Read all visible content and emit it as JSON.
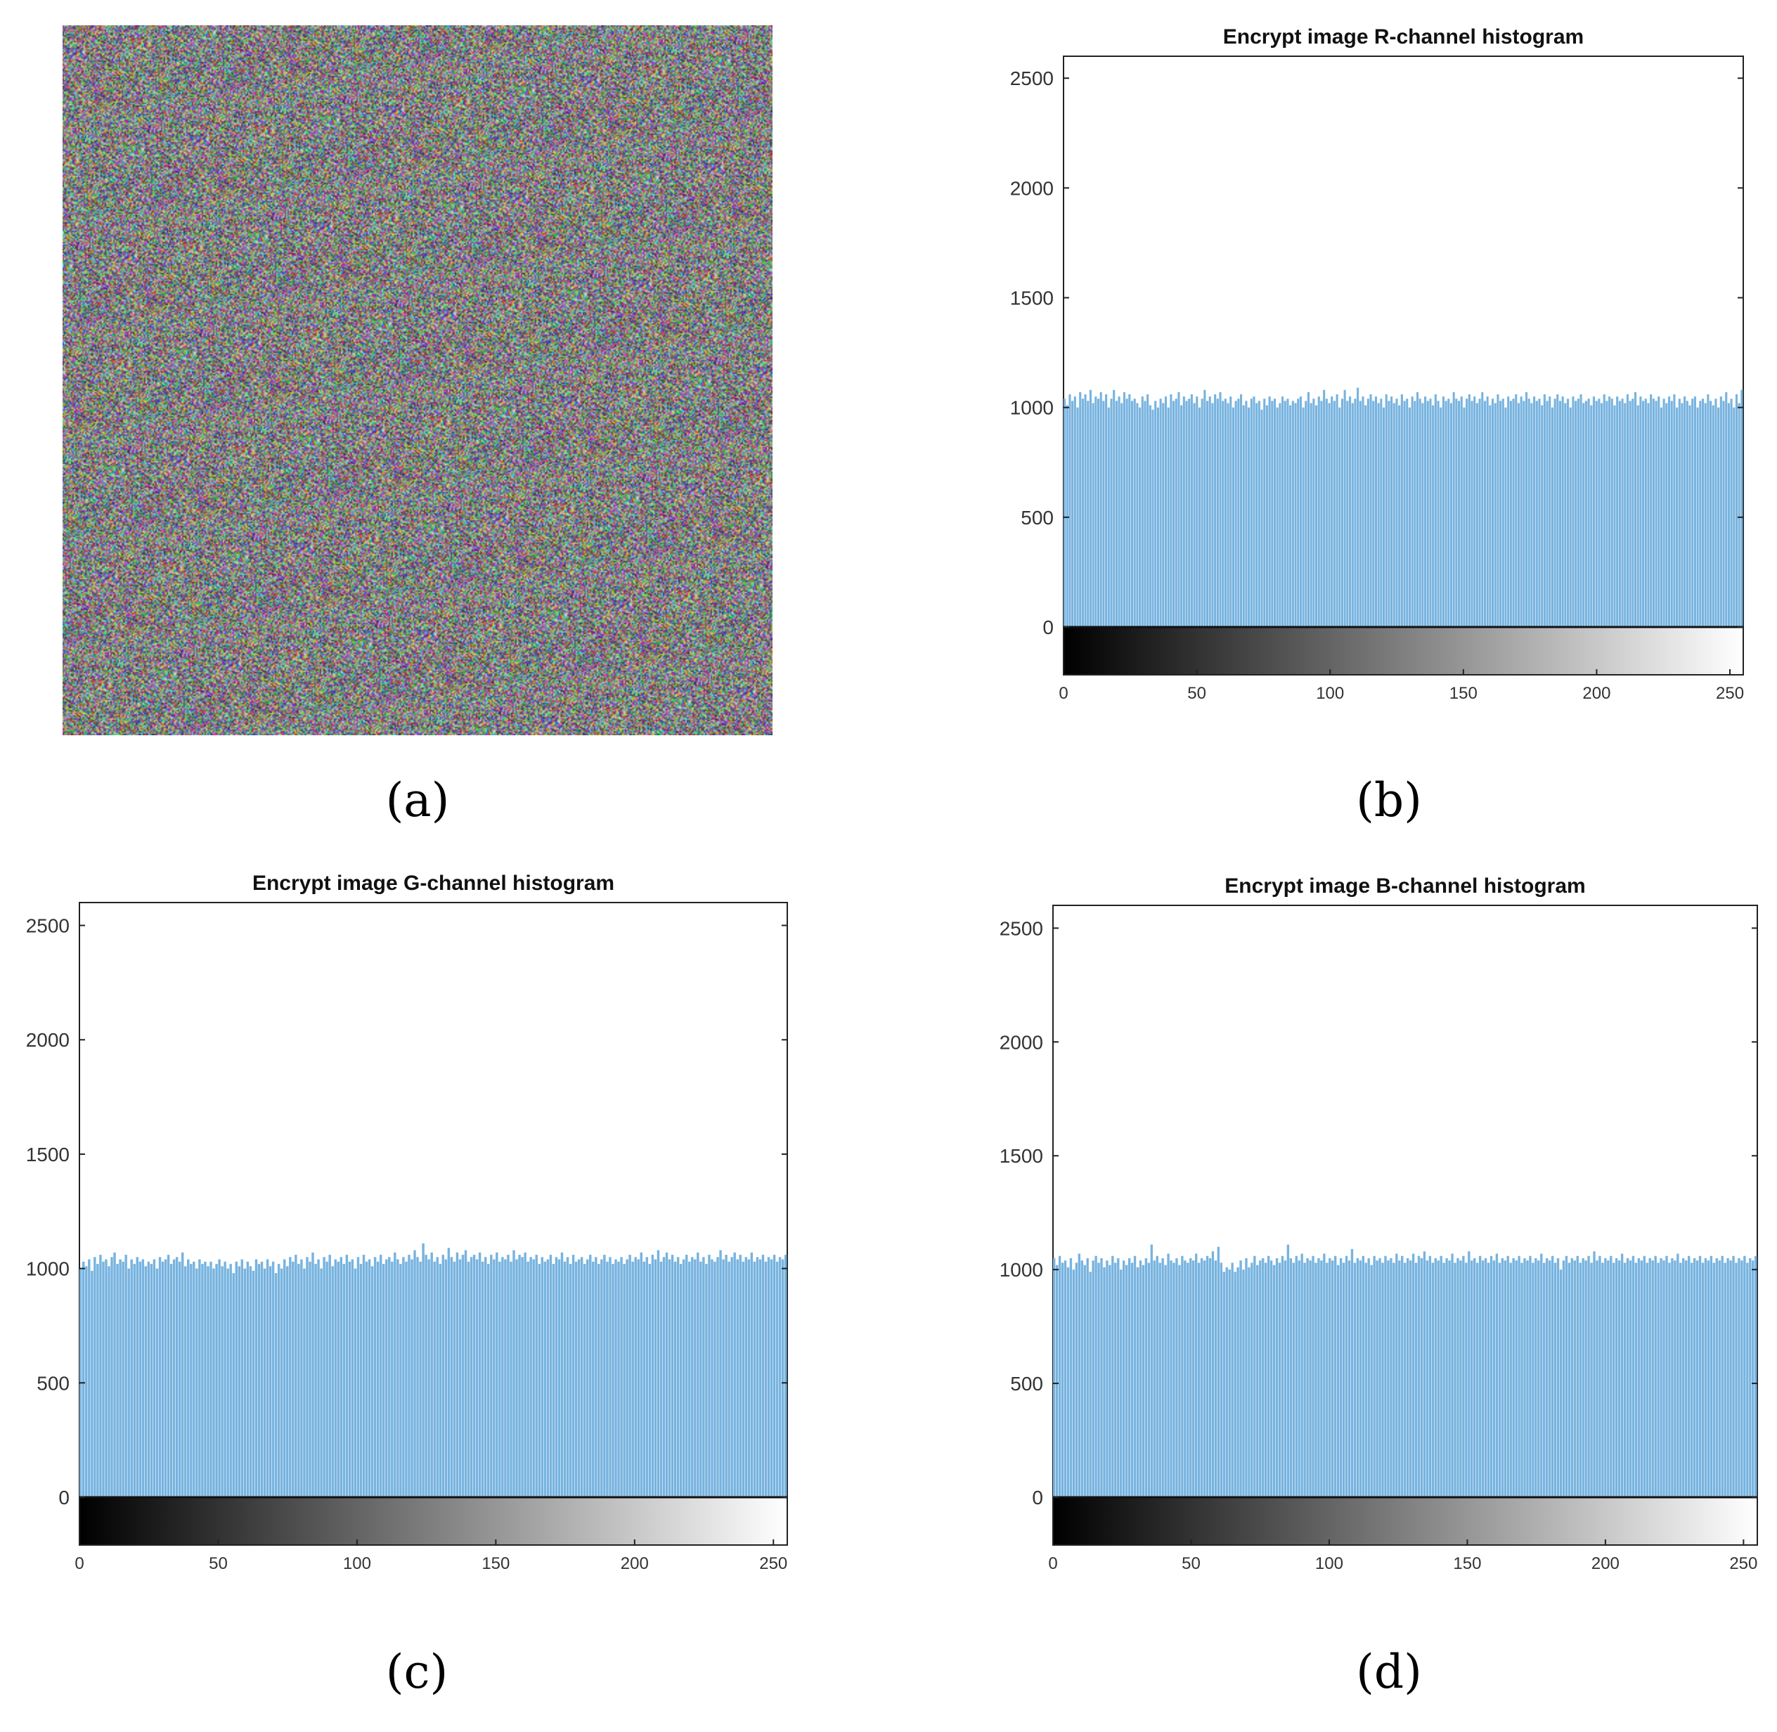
{
  "figure": {
    "panels": [
      {
        "label": "(a)"
      },
      {
        "label": "(b)"
      },
      {
        "label": "(c)"
      },
      {
        "label": "(d)"
      }
    ]
  },
  "colors": {
    "bar": "#77b3df",
    "axis": "#222222",
    "tick_text": "#333333"
  },
  "chart_data": [
    {
      "type": "bar",
      "panel": "(b)",
      "title": "Encrypt image R-channel histogram",
      "xlabel": "",
      "ylabel": "",
      "xlim": [
        0,
        255
      ],
      "ylim": [
        0,
        2600
      ],
      "xticks": [
        0,
        50,
        100,
        150,
        200,
        250
      ],
      "yticks": [
        0,
        500,
        1000,
        1500,
        2000,
        2500
      ],
      "grayscale_colorbar": true,
      "values": [
        1040,
        1010,
        1060,
        1030,
        1050,
        1000,
        1070,
        1040,
        1060,
        1030,
        1080,
        1020,
        1050,
        1040,
        1070,
        1030,
        1060,
        1000,
        1040,
        1080,
        1030,
        1050,
        1020,
        1070,
        1040,
        1060,
        1030,
        1040,
        1020,
        1000,
        1050,
        1030,
        1060,
        1010,
        990,
        1030,
        1000,
        1040,
        1020,
        1050,
        1000,
        1060,
        1030,
        1040,
        1070,
        1010,
        1050,
        1030,
        1040,
        1060,
        1020,
        1050,
        1000,
        1040,
        1080,
        1030,
        1050,
        1020,
        1060,
        1040,
        1070,
        1030,
        1040,
        1020,
        1050,
        1000,
        1030,
        1040,
        1060,
        1010,
        1030,
        1000,
        1040,
        1050,
        1020,
        1030,
        990,
        1040,
        1010,
        1050,
        1030,
        1040,
        1000,
        1020,
        1050,
        1030,
        1040,
        1010,
        1030,
        1020,
        1040,
        1050,
        1000,
        1030,
        1070,
        1020,
        1040,
        1010,
        1050,
        1030,
        1080,
        1040,
        1020,
        1050,
        1030,
        1060,
        1000,
        1040,
        1080,
        1030,
        1050,
        1020,
        1040,
        1090,
        1030,
        1050,
        1010,
        1040,
        1060,
        1030,
        1050,
        1020,
        1040,
        1000,
        1060,
        1030,
        1050,
        1020,
        1040,
        1010,
        1060,
        1030,
        1040,
        1000,
        1050,
        1030,
        1070,
        1040,
        1020,
        1050,
        1030,
        1040,
        1010,
        1060,
        1030,
        1000,
        1050,
        1030,
        1040,
        1020,
        1070,
        1040,
        1030,
        1050,
        1000,
        1040,
        1060,
        1030,
        1050,
        1020,
        1040,
        1070,
        1030,
        1050,
        1010,
        1040,
        1020,
        1060,
        1030,
        1040,
        1000,
        1050,
        1030,
        1040,
        1060,
        1020,
        1050,
        1030,
        1070,
        1040,
        1020,
        1050,
        1030,
        1040,
        1010,
        1060,
        1030,
        1050,
        1000,
        1040,
        1060,
        1030,
        1050,
        1020,
        1040,
        1000,
        1050,
        1030,
        1040,
        1060,
        1020,
        1030,
        1040,
        1010,
        1050,
        1030,
        1040,
        1020,
        1060,
        1030,
        1050,
        1040,
        1010,
        1050,
        1030,
        1040,
        1020,
        1060,
        1030,
        1040,
        1070,
        1010,
        1050,
        1030,
        1040,
        1020,
        1060,
        1040,
        1030,
        1050,
        1000,
        1040,
        1020,
        1050,
        1030,
        1060,
        1000,
        1040,
        1020,
        1050,
        1030,
        1010,
        1040,
        1050,
        1000,
        1030,
        1040,
        1020,
        1060,
        1030,
        1010,
        1040,
        1000,
        1050,
        1030,
        1070,
        1020,
        1040,
        1000,
        1060,
        1020,
        1080
      ]
    },
    {
      "type": "bar",
      "panel": "(c)",
      "title": "Encrypt image G-channel histogram",
      "xlabel": "",
      "ylabel": "",
      "xlim": [
        0,
        255
      ],
      "ylim": [
        0,
        2600
      ],
      "xticks": [
        0,
        50,
        100,
        150,
        200,
        250
      ],
      "yticks": [
        0,
        500,
        1000,
        1500,
        2000,
        2500
      ],
      "grayscale_colorbar": true,
      "values": [
        1000,
        1030,
        1010,
        1040,
        990,
        1050,
        1020,
        1060,
        1030,
        1040,
        1010,
        1050,
        1070,
        1020,
        1040,
        1030,
        1060,
        1000,
        1040,
        1020,
        1050,
        1030,
        1040,
        1010,
        1030,
        1020,
        1040,
        1000,
        1050,
        1030,
        1040,
        1060,
        1020,
        1040,
        1050,
        1030,
        1070,
        1010,
        1040,
        1020,
        1030,
        1000,
        1040,
        1020,
        1030,
        1010,
        1030,
        1000,
        1020,
        1040,
        1010,
        1030,
        1000,
        1020,
        980,
        1030,
        1010,
        1040,
        1000,
        1030,
        1010,
        990,
        1040,
        1020,
        1030,
        1000,
        1040,
        1010,
        1030,
        980,
        1020,
        1000,
        1040,
        1010,
        1050,
        1030,
        1060,
        1020,
        1040,
        1000,
        1050,
        1030,
        1070,
        1020,
        1040,
        1000,
        1050,
        1030,
        1060,
        1010,
        1040,
        1030,
        1050,
        1020,
        1060,
        1030,
        1040,
        1000,
        1050,
        1020,
        1060,
        1030,
        1040,
        1010,
        1050,
        1030,
        1060,
        1020,
        1040,
        1050,
        1030,
        1070,
        1040,
        1020,
        1050,
        1030,
        1060,
        1040,
        1080,
        1050,
        1030,
        1110,
        1060,
        1040,
        1070,
        1030,
        1050,
        1020,
        1060,
        1040,
        1090,
        1050,
        1030,
        1070,
        1040,
        1060,
        1080,
        1030,
        1050,
        1060,
        1040,
        1070,
        1030,
        1050,
        1020,
        1060,
        1040,
        1070,
        1030,
        1050,
        1040,
        1060,
        1030,
        1080,
        1040,
        1060,
        1050,
        1070,
        1030,
        1050,
        1040,
        1060,
        1020,
        1050,
        1030,
        1040,
        1060,
        1020,
        1050,
        1040,
        1070,
        1030,
        1050,
        1020,
        1060,
        1030,
        1040,
        1050,
        1020,
        1040,
        1060,
        1030,
        1050,
        1020,
        1040,
        1060,
        1030,
        1050,
        1020,
        1040,
        1030,
        1050,
        1020,
        1040,
        1060,
        1030,
        1050,
        1040,
        1070,
        1030,
        1050,
        1020,
        1060,
        1040,
        1080,
        1030,
        1050,
        1070,
        1040,
        1060,
        1030,
        1050,
        1020,
        1040,
        1060,
        1030,
        1050,
        1040,
        1070,
        1030,
        1050,
        1020,
        1060,
        1040,
        1030,
        1050,
        1080,
        1040,
        1060,
        1030,
        1050,
        1070,
        1040,
        1060,
        1030,
        1050,
        1040,
        1070,
        1030,
        1050,
        1040,
        1060,
        1030,
        1050,
        1040,
        1060,
        1030,
        1050,
        1040,
        1060
      ]
    },
    {
      "type": "bar",
      "panel": "(d)",
      "title": "Encrypt image B-channel histogram",
      "xlabel": "",
      "ylabel": "",
      "xlim": [
        0,
        255
      ],
      "ylim": [
        0,
        2600
      ],
      "xticks": [
        0,
        50,
        100,
        150,
        200,
        250
      ],
      "yticks": [
        0,
        500,
        1000,
        1500,
        2000,
        2500
      ],
      "grayscale_colorbar": true,
      "values": [
        1050,
        1020,
        1060,
        1030,
        1040,
        1010,
        1050,
        1000,
        1030,
        1070,
        1040,
        1020,
        1050,
        990,
        1040,
        1060,
        1030,
        1050,
        1010,
        1040,
        1020,
        1060,
        1030,
        1050,
        1000,
        1040,
        1020,
        1050,
        1030,
        1060,
        1010,
        1040,
        1020,
        1050,
        1030,
        1110,
        1040,
        1060,
        1030,
        1050,
        1020,
        1070,
        1040,
        1030,
        1050,
        1020,
        1060,
        1040,
        1030,
        1050,
        1040,
        1070,
        1030,
        1050,
        1040,
        1060,
        1050,
        1080,
        1040,
        1100,
        1030,
        990,
        1010,
        1000,
        1030,
        990,
        1010,
        1040,
        1000,
        1050,
        1010,
        1030,
        1060,
        1020,
        1040,
        1050,
        1030,
        1060,
        1040,
        1020,
        1050,
        1030,
        1060,
        1040,
        1110,
        1050,
        1030,
        1060,
        1040,
        1070,
        1030,
        1050,
        1040,
        1060,
        1030,
        1050,
        1040,
        1070,
        1030,
        1050,
        1040,
        1060,
        1020,
        1050,
        1030,
        1060,
        1040,
        1090,
        1030,
        1050,
        1040,
        1060,
        1030,
        1050,
        1020,
        1060,
        1040,
        1050,
        1030,
        1060,
        1040,
        1050,
        1030,
        1070,
        1040,
        1060,
        1030,
        1050,
        1040,
        1070,
        1030,
        1060,
        1050,
        1080,
        1040,
        1060,
        1030,
        1050,
        1040,
        1060,
        1030,
        1050,
        1040,
        1070,
        1030,
        1050,
        1040,
        1060,
        1030,
        1080,
        1040,
        1050,
        1030,
        1060,
        1040,
        1050,
        1030,
        1060,
        1040,
        1070,
        1030,
        1050,
        1040,
        1060,
        1030,
        1050,
        1040,
        1060,
        1030,
        1050,
        1040,
        1060,
        1030,
        1050,
        1040,
        1070,
        1030,
        1050,
        1040,
        1060,
        1030,
        1050,
        1000,
        1040,
        1060,
        1030,
        1050,
        1040,
        1060,
        1030,
        1050,
        1040,
        1060,
        1030,
        1080,
        1040,
        1060,
        1030,
        1050,
        1040,
        1060,
        1030,
        1050,
        1040,
        1070,
        1030,
        1050,
        1040,
        1060,
        1030,
        1050,
        1040,
        1060,
        1030,
        1050,
        1040,
        1060,
        1030,
        1050,
        1040,
        1060,
        1030,
        1050,
        1040,
        1070,
        1030,
        1050,
        1040,
        1060,
        1030,
        1050,
        1040,
        1060,
        1030,
        1050,
        1040,
        1060,
        1030,
        1050,
        1040,
        1060,
        1030,
        1050,
        1040,
        1060,
        1030,
        1050,
        1040,
        1060,
        1030,
        1050,
        1040,
        1060
      ]
    }
  ]
}
